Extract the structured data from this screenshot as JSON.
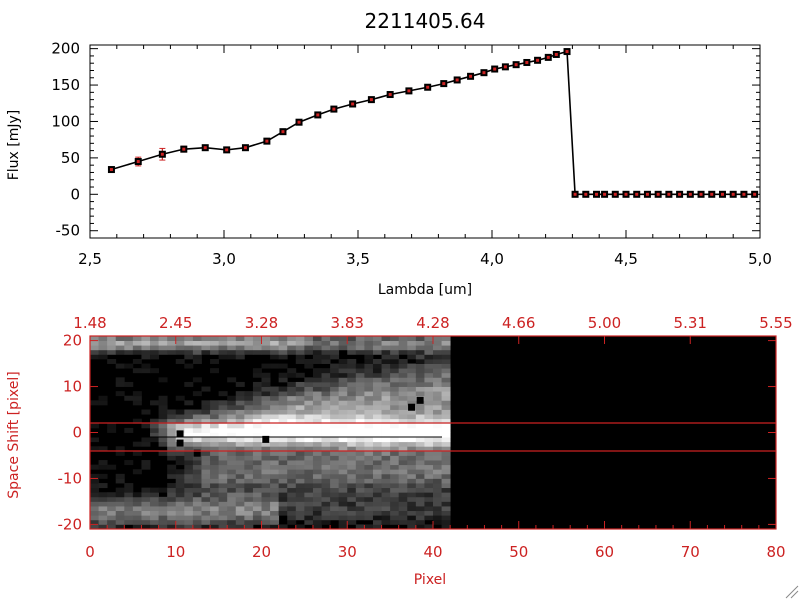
{
  "chart_data": [
    {
      "type": "line",
      "title": "2211405.64",
      "xlabel": "Lambda [um]",
      "ylabel": "Flux [mJy]",
      "xlim": [
        2.5,
        5.0
      ],
      "ylim": [
        -60,
        205
      ],
      "x_ticks": [
        "2.5",
        "3.0",
        "3.5",
        "4.0",
        "4.5",
        "5.0"
      ],
      "y_ticks": [
        "200",
        "150",
        "100",
        "50",
        "0",
        "-50"
      ],
      "series": [
        {
          "x": [
            2.58,
            2.68,
            2.77,
            2.85,
            2.93,
            3.01,
            3.08,
            3.16,
            3.22,
            3.28,
            3.35,
            3.41,
            3.48,
            3.55,
            3.62,
            3.69,
            3.76,
            3.82,
            3.87,
            3.92,
            3.97,
            4.01,
            4.05,
            4.09,
            4.13,
            4.17,
            4.21,
            4.24,
            4.28,
            4.31,
            4.35,
            4.39,
            4.42,
            4.46,
            4.5,
            4.54,
            4.58,
            4.62,
            4.66,
            4.7,
            4.74,
            4.78,
            4.82,
            4.86,
            4.9,
            4.94,
            4.98
          ],
          "y": [
            34,
            45,
            55,
            62,
            64,
            61,
            64,
            73,
            86,
            99,
            109,
            117,
            124,
            130,
            137,
            142,
            147,
            152,
            157,
            162,
            167,
            172,
            175,
            178,
            181,
            184,
            188,
            192,
            196,
            0,
            0,
            0,
            0,
            0,
            0,
            0,
            0,
            0,
            0,
            0,
            0,
            0,
            0,
            0,
            0,
            0,
            0
          ],
          "err": [
            3,
            6,
            8,
            4,
            3,
            3,
            3,
            3,
            3,
            3,
            3,
            2,
            2,
            2,
            2,
            2,
            2,
            2,
            2,
            2,
            2,
            2,
            2,
            2,
            2,
            2,
            2,
            2,
            2,
            0,
            0,
            0,
            0,
            0,
            0,
            0,
            0,
            0,
            0,
            0,
            0,
            0,
            0,
            0,
            0,
            0,
            0
          ],
          "line_color": "#000000",
          "marker_color": "#000000",
          "error_color": "#cc2222",
          "zero_line_color": "#cc2222"
        }
      ]
    },
    {
      "type": "heatmap",
      "xlabel": "Pixel",
      "ylabel": "Space Shift [pixel]",
      "xlim": [
        0,
        80
      ],
      "ylim": [
        -21,
        21
      ],
      "x_ticks": [
        "0",
        "10",
        "20",
        "30",
        "40",
        "50",
        "60",
        "70",
        "80"
      ],
      "top_ticks": [
        "1.48",
        "2.45",
        "3.28",
        "3.83",
        "4.28",
        "4.66",
        "5.00",
        "5.31",
        "5.55"
      ],
      "y_ticks": [
        "20",
        "10",
        "0",
        "-10",
        "-20"
      ],
      "extraction_window": [
        -3,
        3
      ],
      "data_extent_pixel": 42,
      "color": "#cc2222"
    }
  ]
}
